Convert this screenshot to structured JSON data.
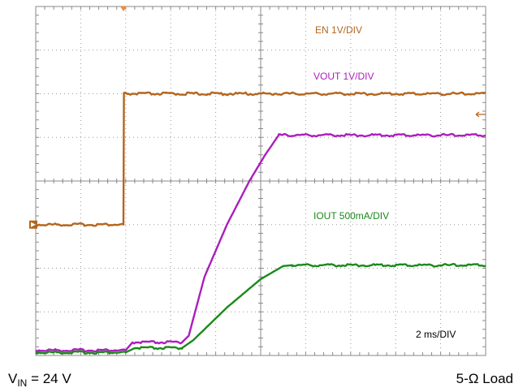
{
  "chart_data": {
    "type": "line",
    "grid": {
      "x_divisions": 10,
      "y_divisions": 8,
      "minor_ticks_per_div": 5
    },
    "x_unit": "ms",
    "ms_per_div": 2,
    "xlim": [
      0,
      20
    ],
    "ylim_div": [
      0,
      8
    ],
    "series": [
      {
        "name": "EN 1V/DIV",
        "color": "#b5651d",
        "div_per_unit": 1,
        "x": [
          0,
          3.9,
          3.92,
          20
        ],
        "y_div": [
          3.0,
          3.0,
          6.0,
          6.0
        ]
      },
      {
        "name": "VOUT 1V/DIV",
        "color": "#aa1fbb",
        "div_per_unit": 1,
        "x": [
          0,
          4.0,
          4.3,
          6.5,
          6.8,
          7.5,
          8.5,
          9.5,
          10.2,
          10.8,
          11.2,
          20
        ],
        "y_div": [
          0.12,
          0.12,
          0.3,
          0.3,
          0.45,
          1.8,
          3.0,
          4.0,
          4.6,
          5.05,
          5.05,
          5.05
        ]
      },
      {
        "name": "IOUT 500mA/DIV",
        "color": "#1a8a1a",
        "div_per_unit": 2,
        "x": [
          0,
          4.0,
          4.4,
          6.5,
          7.0,
          8.5,
          10.0,
          11.0,
          11.4,
          20
        ],
        "y_div": [
          0.07,
          0.07,
          0.17,
          0.17,
          0.35,
          1.1,
          1.75,
          2.05,
          2.07,
          2.07
        ]
      }
    ],
    "annotations": [
      "EN 1V/DIV",
      "VOUT 1V/DIV",
      "IOUT 500mA/DIV",
      "2 ms/DIV"
    ],
    "label_colors": [
      "#b5651d",
      "#aa1fbb",
      "#1a8a1a",
      "#000000"
    ]
  },
  "captions": {
    "left_main": "V",
    "left_sub": "IN",
    "left_rest": " = 24 V",
    "right": "5-Ω Load"
  }
}
